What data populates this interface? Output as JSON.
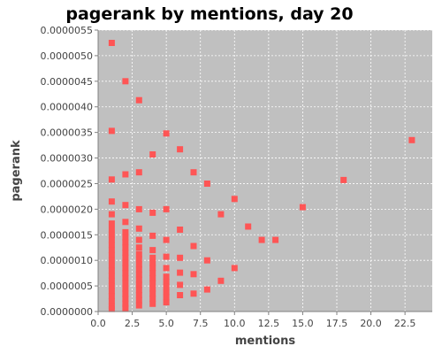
{
  "chart_data": {
    "type": "scatter",
    "title": "pagerank by mentions, day 20",
    "xlabel": "mentions",
    "ylabel": "pagerank",
    "xlim": [
      0,
      24.5
    ],
    "ylim": [
      0,
      5.5e-06
    ],
    "x_ticks": [
      0.0,
      2.5,
      5.0,
      7.5,
      10.0,
      12.5,
      15.0,
      17.5,
      20.0,
      22.5
    ],
    "x_tick_labels": [
      "0.0",
      "2.5",
      "5.0",
      "7.5",
      "10.0",
      "12.5",
      "15.0",
      "17.5",
      "20.0",
      "22.5"
    ],
    "y_ticks": [
      0,
      5e-07,
      1e-06,
      1.5e-06,
      2e-06,
      2.5e-06,
      3e-06,
      3.5e-06,
      4e-06,
      4.5e-06,
      5e-06,
      5.5e-06
    ],
    "y_tick_labels": [
      "0.0000000",
      "0.0000005",
      "0.0000010",
      "0.0000015",
      "0.0000020",
      "0.0000025",
      "0.0000030",
      "0.0000035",
      "0.0000040",
      "0.0000045",
      "0.0000050",
      "0.0000055"
    ],
    "grid": true,
    "legend": false,
    "marker_color": "#ff5555",
    "background_color": "#c0c0c0",
    "series": [
      {
        "points": [
          [
            1,
            5.25e-06
          ],
          [
            1,
            3.53e-06
          ],
          [
            1,
            2.58e-06
          ],
          [
            1,
            2.15e-06
          ],
          [
            1,
            1.9e-06
          ],
          [
            1,
            1.72e-06
          ],
          [
            1,
            1.6e-06
          ],
          [
            1,
            1.5e-06
          ],
          [
            1,
            1.4e-06
          ],
          [
            1,
            1.3e-06
          ],
          [
            1,
            1.2e-06
          ],
          [
            1,
            1.1e-06
          ],
          [
            1,
            1e-06
          ],
          [
            1,
            9e-07
          ],
          [
            1,
            8e-07
          ],
          [
            1,
            7e-07
          ],
          [
            1,
            6e-07
          ],
          [
            1,
            5e-07
          ],
          [
            1,
            4e-07
          ],
          [
            1,
            3e-07
          ],
          [
            1,
            2e-07
          ],
          [
            1,
            1e-07
          ],
          [
            1,
            5e-08
          ],
          [
            2,
            4.5e-06
          ],
          [
            2,
            2.68e-06
          ],
          [
            2,
            2.08e-06
          ],
          [
            2,
            1.75e-06
          ],
          [
            2,
            1.55e-06
          ],
          [
            2,
            1.45e-06
          ],
          [
            2,
            1.35e-06
          ],
          [
            2,
            1.25e-06
          ],
          [
            2,
            1.15e-06
          ],
          [
            2,
            1.05e-06
          ],
          [
            2,
            9.5e-07
          ],
          [
            2,
            8.5e-07
          ],
          [
            2,
            7.5e-07
          ],
          [
            2,
            6.5e-07
          ],
          [
            2,
            5.5e-07
          ],
          [
            2,
            4.5e-07
          ],
          [
            2,
            3.5e-07
          ],
          [
            2,
            2.5e-07
          ],
          [
            2,
            1.5e-07
          ],
          [
            2,
            7e-08
          ],
          [
            3,
            4.13e-06
          ],
          [
            3,
            2.72e-06
          ],
          [
            3,
            2e-06
          ],
          [
            3,
            1.62e-06
          ],
          [
            3,
            1.4e-06
          ],
          [
            3,
            1.25e-06
          ],
          [
            3,
            1.12e-06
          ],
          [
            3,
            1.02e-06
          ],
          [
            3,
            9.2e-07
          ],
          [
            3,
            8.2e-07
          ],
          [
            3,
            7.2e-07
          ],
          [
            3,
            6.2e-07
          ],
          [
            3,
            5.2e-07
          ],
          [
            3,
            4.2e-07
          ],
          [
            3,
            3.2e-07
          ],
          [
            3,
            2.2e-07
          ],
          [
            3,
            1.2e-07
          ],
          [
            4,
            3.07e-06
          ],
          [
            4,
            1.93e-06
          ],
          [
            4,
            1.48e-06
          ],
          [
            4,
            1.2e-06
          ],
          [
            4,
            1.05e-06
          ],
          [
            4,
            9.5e-07
          ],
          [
            4,
            8.5e-07
          ],
          [
            4,
            7.5e-07
          ],
          [
            4,
            6.5e-07
          ],
          [
            4,
            5.5e-07
          ],
          [
            4,
            4.5e-07
          ],
          [
            4,
            3.5e-07
          ],
          [
            4,
            2.5e-07
          ],
          [
            4,
            1.5e-07
          ],
          [
            5,
            3.48e-06
          ],
          [
            5,
            2e-06
          ],
          [
            5,
            1.4e-06
          ],
          [
            5,
            1.07e-06
          ],
          [
            5,
            8.5e-07
          ],
          [
            5,
            6.8e-07
          ],
          [
            5,
            5.8e-07
          ],
          [
            5,
            4.8e-07
          ],
          [
            5,
            3.8e-07
          ],
          [
            5,
            2.8e-07
          ],
          [
            5,
            1.8e-07
          ],
          [
            6,
            3.17e-06
          ],
          [
            6,
            1.6e-06
          ],
          [
            6,
            1.05e-06
          ],
          [
            6,
            7.6e-07
          ],
          [
            6,
            5.2e-07
          ],
          [
            6,
            3.2e-07
          ],
          [
            7,
            2.72e-06
          ],
          [
            7,
            1.28e-06
          ],
          [
            7,
            7.3e-07
          ],
          [
            7,
            3.5e-07
          ],
          [
            8,
            2.5e-06
          ],
          [
            8,
            1e-06
          ],
          [
            8,
            4.3e-07
          ],
          [
            9,
            1.9e-06
          ],
          [
            9,
            6e-07
          ],
          [
            10,
            2.2e-06
          ],
          [
            10,
            8.5e-07
          ],
          [
            11,
            1.66e-06
          ],
          [
            12,
            1.4e-06
          ],
          [
            13,
            1.4e-06
          ],
          [
            15,
            2.04e-06
          ],
          [
            18,
            2.57e-06
          ],
          [
            23,
            3.35e-06
          ]
        ]
      }
    ]
  }
}
